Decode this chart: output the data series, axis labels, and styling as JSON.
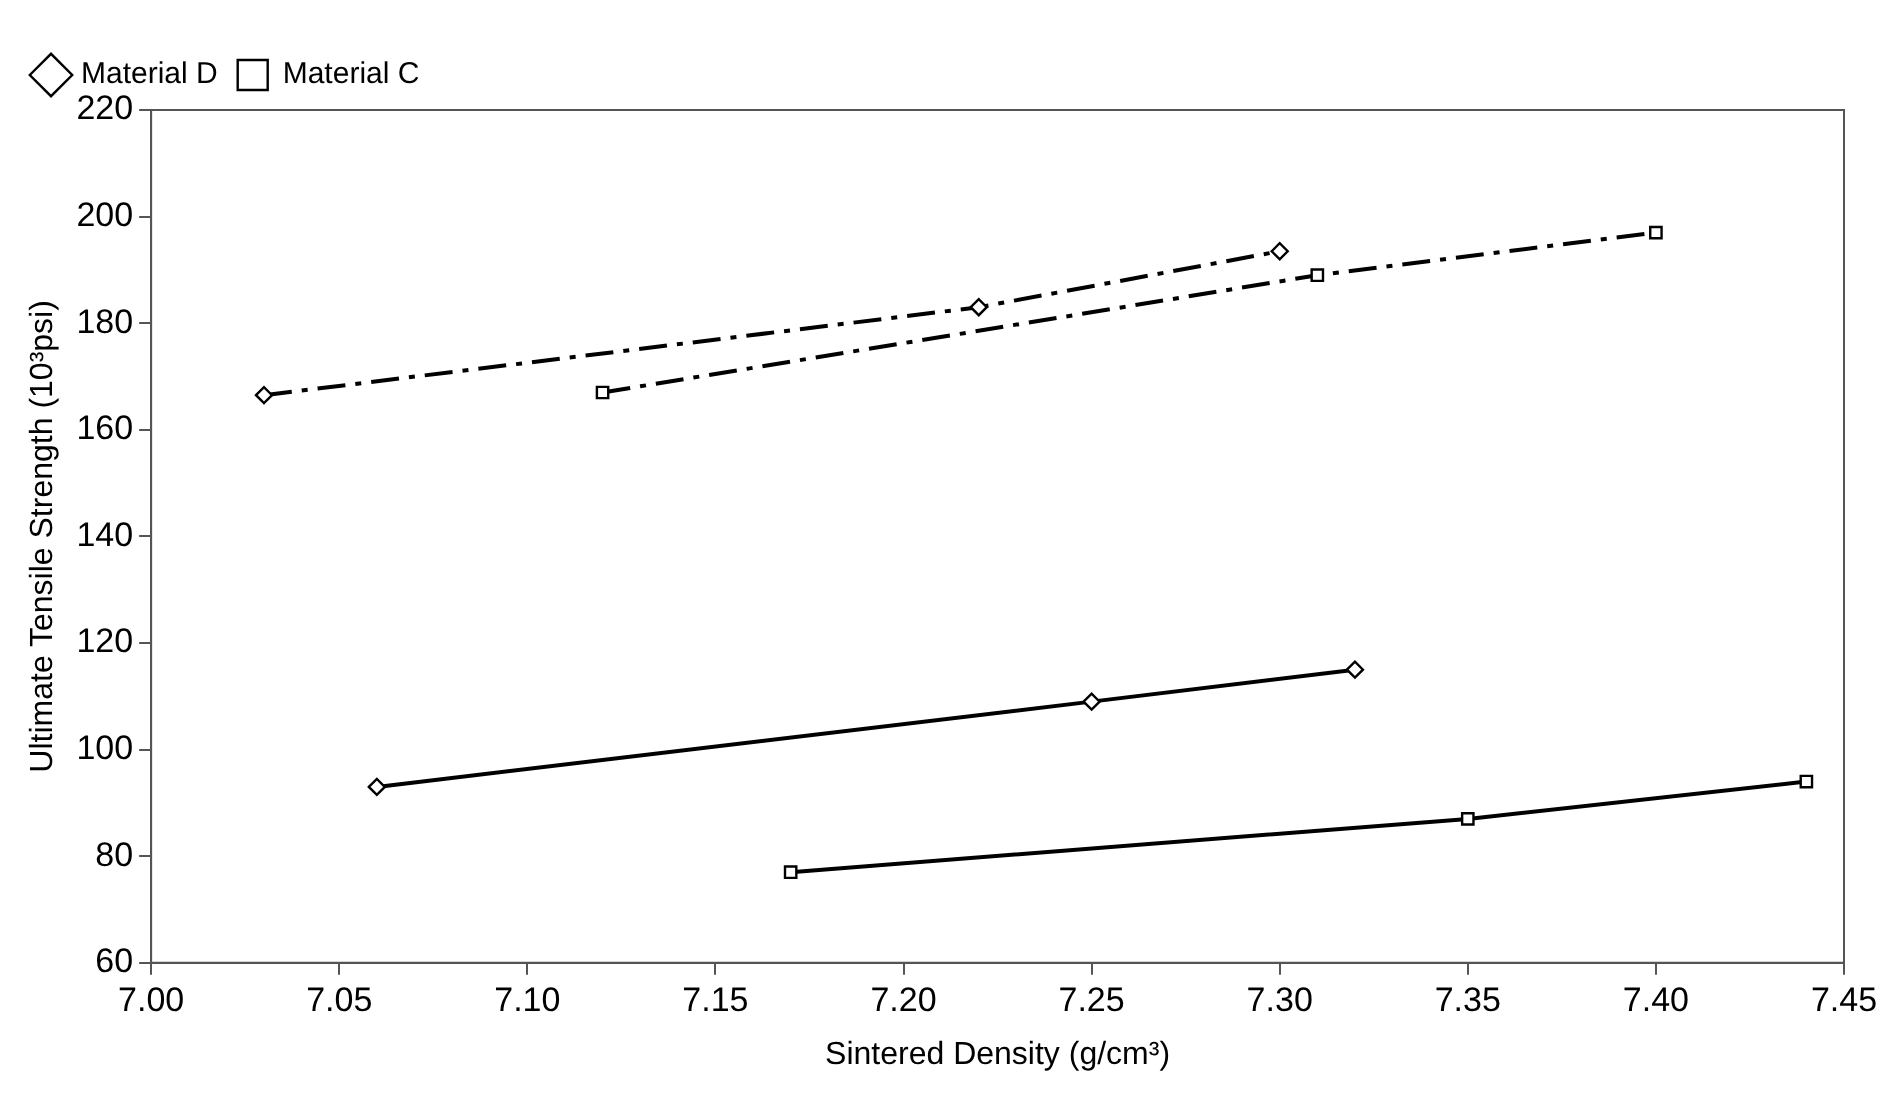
{
  "chart_data": {
    "type": "line",
    "xlabel": "Sintered Density (g/cm³)",
    "ylabel": "Ultimate Tensile Strength (10³psi)",
    "xlim": [
      7.0,
      7.45
    ],
    "xticks": [
      {
        "value": 7.0,
        "label": "7.00"
      },
      {
        "value": 7.05,
        "label": "7.05"
      },
      {
        "value": 7.1,
        "label": "7.10"
      },
      {
        "value": 7.15,
        "label": "7.15"
      },
      {
        "value": 7.2,
        "label": "7.20"
      },
      {
        "value": 7.25,
        "label": "7.25"
      },
      {
        "value": 7.3,
        "label": "7.30"
      },
      {
        "value": 7.35,
        "label": "7.35"
      },
      {
        "value": 7.4,
        "label": "7.40"
      },
      {
        "value": 7.45,
        "label": "7.45"
      }
    ],
    "ylim": [
      60,
      220
    ],
    "yticks": [
      60,
      80,
      100,
      120,
      140,
      160,
      180,
      200,
      220
    ],
    "grid": false,
    "legend": "top left",
    "series": [
      {
        "name": "Material D",
        "color": "#000000",
        "marker": "diamond",
        "line_style": "solid",
        "x": [
          7.06,
          7.25,
          7.32
        ],
        "values": [
          93,
          109,
          115
        ]
      },
      {
        "name": "Material C",
        "color": "#000000",
        "marker": "square",
        "line_style": "solid",
        "x": [
          7.17,
          7.35,
          7.44
        ],
        "values": [
          77,
          87,
          94
        ]
      },
      {
        "color": "#000000",
        "marker": "diamond",
        "line_style": "dashed",
        "x": [
          7.03,
          7.22,
          7.3
        ],
        "values": [
          166.5,
          183,
          193.5
        ]
      },
      {
        "color": "#000000",
        "marker": "square",
        "line_style": "dashed",
        "x": [
          7.12,
          7.31,
          7.4
        ],
        "values": [
          167,
          189,
          197
        ]
      }
    ]
  }
}
